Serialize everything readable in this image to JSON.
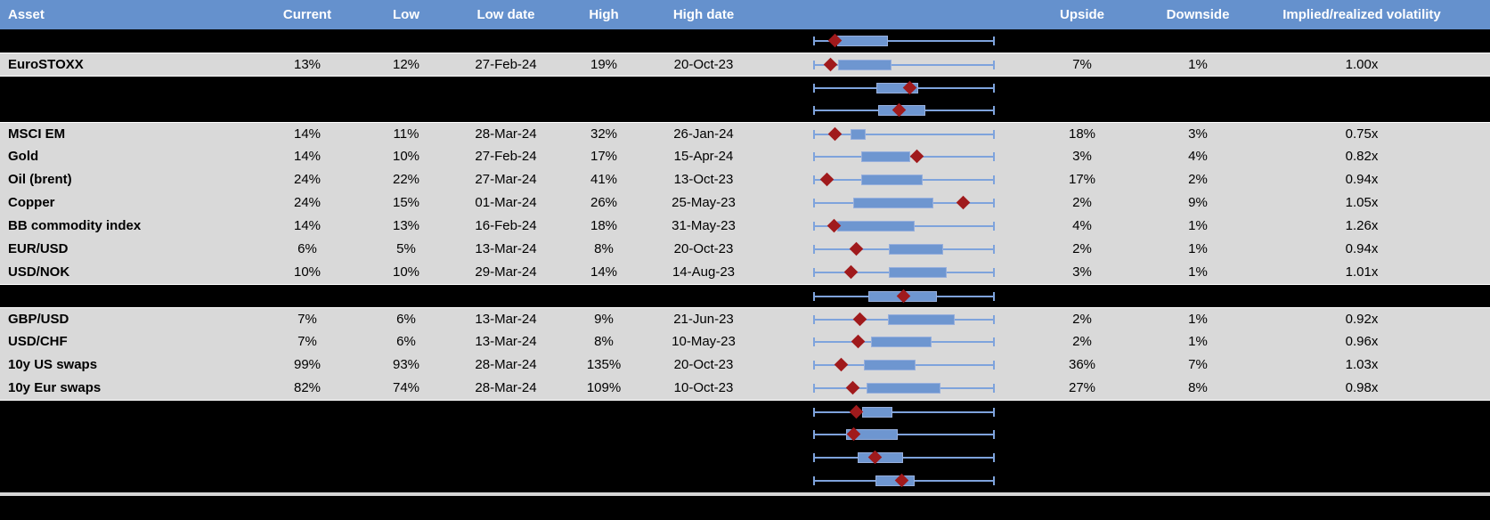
{
  "header": {
    "columns": [
      "Asset",
      "Current",
      "Low",
      "Low date",
      "High",
      "High date",
      "",
      "Upside",
      "Downside",
      "Implied/realized volatility"
    ]
  },
  "colors": {
    "header_bg": "#6591cd",
    "row_bg": "#d9d9d9",
    "hidden_row_bg": "#000000",
    "grid_line": "#ffffff",
    "whisker": "#7ea3dc",
    "box_fill": "#6e96d0",
    "box_border": "#97afdc",
    "diamond": "#a01a1c",
    "divider": "#d6d6d6"
  },
  "rows": [
    {
      "type": "hidden",
      "boxplot": {
        "wl": 65,
        "bl": 92,
        "bh": 149,
        "wh": 269,
        "d": 90
      }
    },
    {
      "type": "data",
      "asset": "EuroSTOXX",
      "current": "13%",
      "low": "12%",
      "low_date": "27-Feb-24",
      "high": "19%",
      "high_date": "20-Oct-23",
      "upside": "7%",
      "downside": "1%",
      "implied_realized_vol": "1.00x",
      "boxplot": {
        "wl": 65,
        "bl": 93,
        "bh": 153,
        "wh": 269,
        "d": 85
      }
    },
    {
      "type": "hidden",
      "boxplot": {
        "wl": 65,
        "bl": 136,
        "bh": 183,
        "wh": 269,
        "d": 174
      }
    },
    {
      "type": "hidden",
      "boxplot": {
        "wl": 65,
        "bl": 138,
        "bh": 191,
        "wh": 269,
        "d": 162
      }
    },
    {
      "type": "data",
      "asset": "MSCI EM",
      "current": "14%",
      "low": "11%",
      "low_date": "28-Mar-24",
      "high": "32%",
      "high_date": "26-Jan-24",
      "upside": "18%",
      "downside": "3%",
      "implied_realized_vol": "0.75x",
      "boxplot": {
        "wl": 65,
        "bl": 107,
        "bh": 124,
        "wh": 269,
        "d": 90
      }
    },
    {
      "type": "data",
      "asset": "Gold",
      "current": "14%",
      "low": "10%",
      "low_date": "27-Feb-24",
      "high": "17%",
      "high_date": "15-Apr-24",
      "upside": "3%",
      "downside": "4%",
      "implied_realized_vol": "0.82x",
      "boxplot": {
        "wl": 65,
        "bl": 119,
        "bh": 174,
        "wh": 269,
        "d": 182
      }
    },
    {
      "type": "data",
      "asset": "Oil (brent)",
      "current": "24%",
      "low": "22%",
      "low_date": "27-Mar-24",
      "high": "41%",
      "high_date": "13-Oct-23",
      "upside": "17%",
      "downside": "2%",
      "implied_realized_vol": "0.94x",
      "boxplot": {
        "wl": 65,
        "bl": 119,
        "bh": 188,
        "wh": 269,
        "d": 81
      }
    },
    {
      "type": "data",
      "asset": "Copper",
      "current": "24%",
      "low": "15%",
      "low_date": "01-Mar-24",
      "high": "26%",
      "high_date": "25-May-23",
      "upside": "2%",
      "downside": "9%",
      "implied_realized_vol": "1.05x",
      "boxplot": {
        "wl": 65,
        "bl": 110,
        "bh": 200,
        "wh": 269,
        "d": 234
      }
    },
    {
      "type": "data",
      "asset": "BB commodity index",
      "current": "14%",
      "low": "13%",
      "low_date": "16-Feb-24",
      "high": "18%",
      "high_date": "31-May-23",
      "upside": "4%",
      "downside": "1%",
      "implied_realized_vol": "1.26x",
      "boxplot": {
        "wl": 65,
        "bl": 92,
        "bh": 179,
        "wh": 269,
        "d": 89
      }
    },
    {
      "type": "data",
      "asset": "EUR/USD",
      "current": "6%",
      "low": "5%",
      "low_date": "13-Mar-24",
      "high": "8%",
      "high_date": "20-Oct-23",
      "upside": "2%",
      "downside": "1%",
      "implied_realized_vol": "0.94x",
      "boxplot": {
        "wl": 65,
        "bl": 150,
        "bh": 211,
        "wh": 269,
        "d": 114
      }
    },
    {
      "type": "data",
      "asset": "USD/NOK",
      "current": "10%",
      "low": "10%",
      "low_date": "29-Mar-24",
      "high": "14%",
      "high_date": "14-Aug-23",
      "upside": "3%",
      "downside": "1%",
      "implied_realized_vol": "1.01x",
      "boxplot": {
        "wl": 65,
        "bl": 150,
        "bh": 215,
        "wh": 269,
        "d": 108
      }
    },
    {
      "type": "hidden",
      "boxplot": {
        "wl": 65,
        "bl": 127,
        "bh": 204,
        "wh": 269,
        "d": 167
      }
    },
    {
      "type": "data",
      "asset": "GBP/USD",
      "current": "7%",
      "low": "6%",
      "low_date": "13-Mar-24",
      "high": "9%",
      "high_date": "21-Jun-23",
      "upside": "2%",
      "downside": "1%",
      "implied_realized_vol": "0.92x",
      "boxplot": {
        "wl": 65,
        "bl": 149,
        "bh": 224,
        "wh": 269,
        "d": 118
      }
    },
    {
      "type": "data",
      "asset": "USD/CHF",
      "current": "7%",
      "low": "6%",
      "low_date": "13-Mar-24",
      "high": "8%",
      "high_date": "10-May-23",
      "upside": "2%",
      "downside": "1%",
      "implied_realized_vol": "0.96x",
      "boxplot": {
        "wl": 65,
        "bl": 130,
        "bh": 198,
        "wh": 269,
        "d": 116
      }
    },
    {
      "type": "data",
      "asset": "10y US swaps",
      "current": "99%",
      "low": "93%",
      "low_date": "28-Mar-24",
      "high": "135%",
      "high_date": "20-Oct-23",
      "upside": "36%",
      "downside": "7%",
      "implied_realized_vol": "1.03x",
      "boxplot": {
        "wl": 65,
        "bl": 122,
        "bh": 180,
        "wh": 269,
        "d": 97
      }
    },
    {
      "type": "data",
      "asset": "10y Eur swaps",
      "current": "82%",
      "low": "74%",
      "low_date": "28-Mar-24",
      "high": "109%",
      "high_date": "10-Oct-23",
      "upside": "27%",
      "downside": "8%",
      "implied_realized_vol": "0.98x",
      "boxplot": {
        "wl": 65,
        "bl": 125,
        "bh": 208,
        "wh": 269,
        "d": 110
      }
    },
    {
      "type": "hidden",
      "boxplot": {
        "wl": 65,
        "bl": 120,
        "bh": 154,
        "wh": 269,
        "d": 114
      }
    },
    {
      "type": "hidden",
      "boxplot": {
        "wl": 65,
        "bl": 102,
        "bh": 160,
        "wh": 269,
        "d": 111
      }
    },
    {
      "type": "hidden",
      "boxplot": {
        "wl": 65,
        "bl": 115,
        "bh": 166,
        "wh": 269,
        "d": 135
      }
    },
    {
      "type": "hidden",
      "boxplot": {
        "wl": 65,
        "bl": 135,
        "bh": 179,
        "wh": 269,
        "d": 165
      }
    }
  ]
}
